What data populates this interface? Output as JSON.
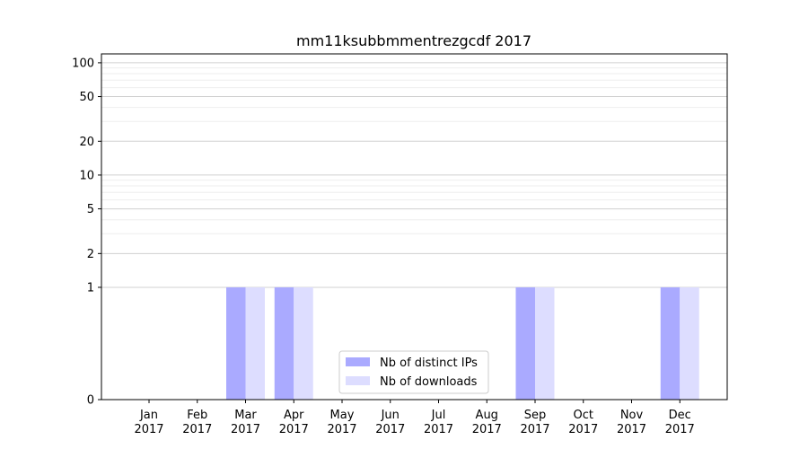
{
  "chart_data": {
    "type": "bar",
    "title": "mm11ksubbmmentrezgcdf 2017",
    "xlabel": "",
    "ylabel": "",
    "y_scale": "symlog",
    "ylim": [
      0,
      120
    ],
    "yticks": [
      0,
      1,
      2,
      5,
      10,
      20,
      50,
      100
    ],
    "ytick_labels": [
      "0",
      "1",
      "2",
      "5",
      "10",
      "20",
      "50",
      "100"
    ],
    "grid": "horizontal",
    "legend_position": "lower-center",
    "categories": [
      {
        "month": "Jan",
        "year": "2017"
      },
      {
        "month": "Feb",
        "year": "2017"
      },
      {
        "month": "Mar",
        "year": "2017"
      },
      {
        "month": "Apr",
        "year": "2017"
      },
      {
        "month": "May",
        "year": "2017"
      },
      {
        "month": "Jun",
        "year": "2017"
      },
      {
        "month": "Jul",
        "year": "2017"
      },
      {
        "month": "Aug",
        "year": "2017"
      },
      {
        "month": "Sep",
        "year": "2017"
      },
      {
        "month": "Oct",
        "year": "2017"
      },
      {
        "month": "Nov",
        "year": "2017"
      },
      {
        "month": "Dec",
        "year": "2017"
      }
    ],
    "series": [
      {
        "name": "Nb of distinct IPs",
        "color": "#aaaaff",
        "values": [
          0,
          0,
          1,
          1,
          0,
          0,
          0,
          0,
          1,
          0,
          0,
          1
        ]
      },
      {
        "name": "Nb of downloads",
        "color": "#ddddff",
        "values": [
          0,
          0,
          1,
          1,
          0,
          0,
          0,
          0,
          1,
          0,
          0,
          1
        ]
      }
    ]
  }
}
